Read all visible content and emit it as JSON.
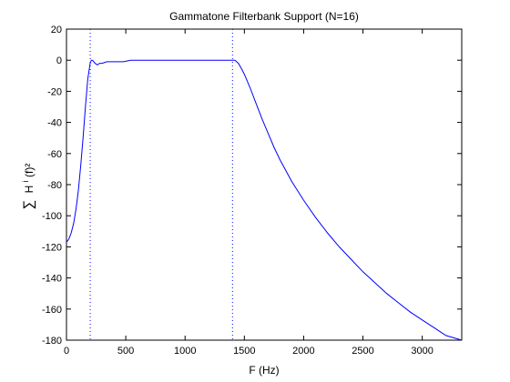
{
  "chart_data": {
    "type": "line",
    "title": "Gammatone Filterbank Support (N=16)",
    "xlabel": "F (Hz)",
    "ylabel": {
      "sum": "∑",
      "h": "H",
      "i": "i",
      "rest": "(f)²"
    },
    "xlim": [
      0,
      3333
    ],
    "ylim": [
      -180,
      20
    ],
    "xticks": [
      0,
      500,
      1000,
      1500,
      2000,
      2500,
      3000
    ],
    "yticks": [
      20,
      0,
      -20,
      -40,
      -60,
      -80,
      -100,
      -120,
      -140,
      -160,
      -180
    ],
    "grid": false,
    "legend": "none",
    "vlines": [
      200,
      1400
    ],
    "series": [
      {
        "color": "#0000ff",
        "x": [
          0,
          20,
          40,
          60,
          80,
          100,
          120,
          140,
          160,
          180,
          200,
          210,
          220,
          240,
          260,
          280,
          300,
          340,
          380,
          420,
          480,
          540,
          600,
          700,
          800,
          900,
          1000,
          1100,
          1200,
          1300,
          1380,
          1420,
          1450,
          1480,
          1500,
          1550,
          1600,
          1650,
          1700,
          1750,
          1800,
          1850,
          1900,
          2000,
          2100,
          2200,
          2300,
          2400,
          2500,
          2600,
          2700,
          2800,
          2900,
          3000,
          3100,
          3200,
          3333
        ],
        "y": [
          -117,
          -115,
          -111,
          -105,
          -96,
          -84,
          -68,
          -50,
          -30,
          -12,
          -2,
          0,
          0,
          -2,
          -3,
          -2,
          -2,
          -1,
          -1,
          -1,
          -1,
          0,
          0,
          0,
          0,
          0,
          0,
          0,
          0,
          0,
          0,
          0,
          -2,
          -6,
          -9,
          -18,
          -28,
          -38,
          -47,
          -56,
          -64,
          -71,
          -78,
          -90,
          -101,
          -111,
          -120,
          -128,
          -136,
          -143,
          -150,
          -156,
          -162,
          -167,
          -172,
          -177,
          -180
        ]
      }
    ]
  }
}
